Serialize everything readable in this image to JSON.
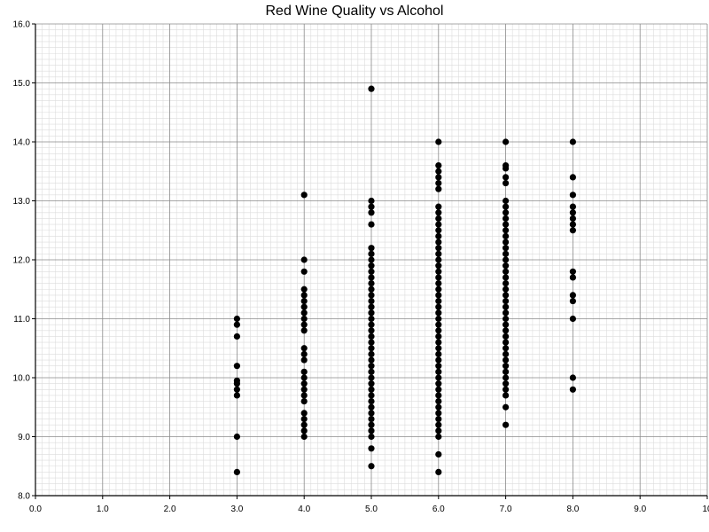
{
  "chart_data": {
    "type": "scatter",
    "title": "Red Wine Quality vs Alcohol",
    "xlabel": "",
    "ylabel": "",
    "xlim": [
      0,
      10
    ],
    "ylim": [
      8,
      16
    ],
    "grid": true,
    "x_ticks": [
      "0.0",
      "1.0",
      "2.0",
      "3.0",
      "4.0",
      "5.0",
      "6.0",
      "7.0",
      "8.0",
      "9.0",
      "10"
    ],
    "y_ticks": [
      "8.0",
      "9.0",
      "10.0",
      "11.0",
      "12.0",
      "13.0",
      "14.0",
      "15.0",
      "16.0"
    ],
    "marker_color": "#000000",
    "series": [
      {
        "points": [
          [
            3,
            8.4
          ],
          [
            3,
            9.0
          ],
          [
            3,
            9.7
          ],
          [
            3,
            9.8
          ],
          [
            3,
            9.9
          ],
          [
            3,
            9.95
          ],
          [
            3,
            10.2
          ],
          [
            3,
            10.7
          ],
          [
            3,
            10.9
          ],
          [
            3,
            11.0
          ],
          [
            4,
            9.0
          ],
          [
            4,
            9.1
          ],
          [
            4,
            9.2
          ],
          [
            4,
            9.3
          ],
          [
            4,
            9.4
          ],
          [
            4,
            9.6
          ],
          [
            4,
            9.7
          ],
          [
            4,
            9.8
          ],
          [
            4,
            9.9
          ],
          [
            4,
            10.0
          ],
          [
            4,
            10.1
          ],
          [
            4,
            10.3
          ],
          [
            4,
            10.4
          ],
          [
            4,
            10.5
          ],
          [
            4,
            10.8
          ],
          [
            4,
            10.9
          ],
          [
            4,
            11.0
          ],
          [
            4,
            11.1
          ],
          [
            4,
            11.2
          ],
          [
            4,
            11.3
          ],
          [
            4,
            11.4
          ],
          [
            4,
            11.5
          ],
          [
            4,
            11.8
          ],
          [
            4,
            12.0
          ],
          [
            4,
            13.1
          ],
          [
            5,
            8.5
          ],
          [
            5,
            8.8
          ],
          [
            5,
            9.0
          ],
          [
            5,
            9.1
          ],
          [
            5,
            9.2
          ],
          [
            5,
            9.3
          ],
          [
            5,
            9.4
          ],
          [
            5,
            9.5
          ],
          [
            5,
            9.6
          ],
          [
            5,
            9.7
          ],
          [
            5,
            9.8
          ],
          [
            5,
            9.9
          ],
          [
            5,
            10.0
          ],
          [
            5,
            10.1
          ],
          [
            5,
            10.2
          ],
          [
            5,
            10.3
          ],
          [
            5,
            10.4
          ],
          [
            5,
            10.5
          ],
          [
            5,
            10.6
          ],
          [
            5,
            10.7
          ],
          [
            5,
            10.8
          ],
          [
            5,
            10.9
          ],
          [
            5,
            11.0
          ],
          [
            5,
            11.1
          ],
          [
            5,
            11.2
          ],
          [
            5,
            11.3
          ],
          [
            5,
            11.4
          ],
          [
            5,
            11.5
          ],
          [
            5,
            11.6
          ],
          [
            5,
            11.7
          ],
          [
            5,
            11.8
          ],
          [
            5,
            11.9
          ],
          [
            5,
            12.0
          ],
          [
            5,
            12.1
          ],
          [
            5,
            12.2
          ],
          [
            5,
            12.6
          ],
          [
            5,
            12.8
          ],
          [
            5,
            12.9
          ],
          [
            5,
            13.0
          ],
          [
            5,
            14.9
          ],
          [
            6,
            8.4
          ],
          [
            6,
            8.7
          ],
          [
            6,
            9.0
          ],
          [
            6,
            9.1
          ],
          [
            6,
            9.2
          ],
          [
            6,
            9.3
          ],
          [
            6,
            9.4
          ],
          [
            6,
            9.5
          ],
          [
            6,
            9.6
          ],
          [
            6,
            9.7
          ],
          [
            6,
            9.8
          ],
          [
            6,
            9.9
          ],
          [
            6,
            10.0
          ],
          [
            6,
            10.1
          ],
          [
            6,
            10.2
          ],
          [
            6,
            10.3
          ],
          [
            6,
            10.4
          ],
          [
            6,
            10.5
          ],
          [
            6,
            10.6
          ],
          [
            6,
            10.7
          ],
          [
            6,
            10.8
          ],
          [
            6,
            10.9
          ],
          [
            6,
            11.0
          ],
          [
            6,
            11.1
          ],
          [
            6,
            11.2
          ],
          [
            6,
            11.3
          ],
          [
            6,
            11.4
          ],
          [
            6,
            11.5
          ],
          [
            6,
            11.6
          ],
          [
            6,
            11.7
          ],
          [
            6,
            11.8
          ],
          [
            6,
            11.9
          ],
          [
            6,
            12.0
          ],
          [
            6,
            12.1
          ],
          [
            6,
            12.2
          ],
          [
            6,
            12.3
          ],
          [
            6,
            12.4
          ],
          [
            6,
            12.5
          ],
          [
            6,
            12.6
          ],
          [
            6,
            12.7
          ],
          [
            6,
            12.8
          ],
          [
            6,
            12.9
          ],
          [
            6,
            13.2
          ],
          [
            6,
            13.3
          ],
          [
            6,
            13.4
          ],
          [
            6,
            13.5
          ],
          [
            6,
            13.6
          ],
          [
            6,
            14.0
          ],
          [
            7,
            9.2
          ],
          [
            7,
            9.5
          ],
          [
            7,
            9.7
          ],
          [
            7,
            9.8
          ],
          [
            7,
            9.9
          ],
          [
            7,
            10.0
          ],
          [
            7,
            10.1
          ],
          [
            7,
            10.2
          ],
          [
            7,
            10.3
          ],
          [
            7,
            10.4
          ],
          [
            7,
            10.5
          ],
          [
            7,
            10.6
          ],
          [
            7,
            10.7
          ],
          [
            7,
            10.8
          ],
          [
            7,
            10.9
          ],
          [
            7,
            11.0
          ],
          [
            7,
            11.1
          ],
          [
            7,
            11.2
          ],
          [
            7,
            11.3
          ],
          [
            7,
            11.4
          ],
          [
            7,
            11.5
          ],
          [
            7,
            11.6
          ],
          [
            7,
            11.7
          ],
          [
            7,
            11.8
          ],
          [
            7,
            11.9
          ],
          [
            7,
            12.0
          ],
          [
            7,
            12.1
          ],
          [
            7,
            12.2
          ],
          [
            7,
            12.3
          ],
          [
            7,
            12.4
          ],
          [
            7,
            12.5
          ],
          [
            7,
            12.6
          ],
          [
            7,
            12.7
          ],
          [
            7,
            12.8
          ],
          [
            7,
            12.9
          ],
          [
            7,
            13.0
          ],
          [
            7,
            13.3
          ],
          [
            7,
            13.4
          ],
          [
            7,
            13.55
          ],
          [
            7,
            13.6
          ],
          [
            7,
            14.0
          ],
          [
            8,
            9.8
          ],
          [
            8,
            10.0
          ],
          [
            8,
            11.0
          ],
          [
            8,
            11.3
          ],
          [
            8,
            11.4
          ],
          [
            8,
            11.7
          ],
          [
            8,
            11.8
          ],
          [
            8,
            12.5
          ],
          [
            8,
            12.6
          ],
          [
            8,
            12.7
          ],
          [
            8,
            12.8
          ],
          [
            8,
            12.9
          ],
          [
            8,
            13.1
          ],
          [
            8,
            13.4
          ],
          [
            8,
            14.0
          ]
        ]
      }
    ]
  }
}
